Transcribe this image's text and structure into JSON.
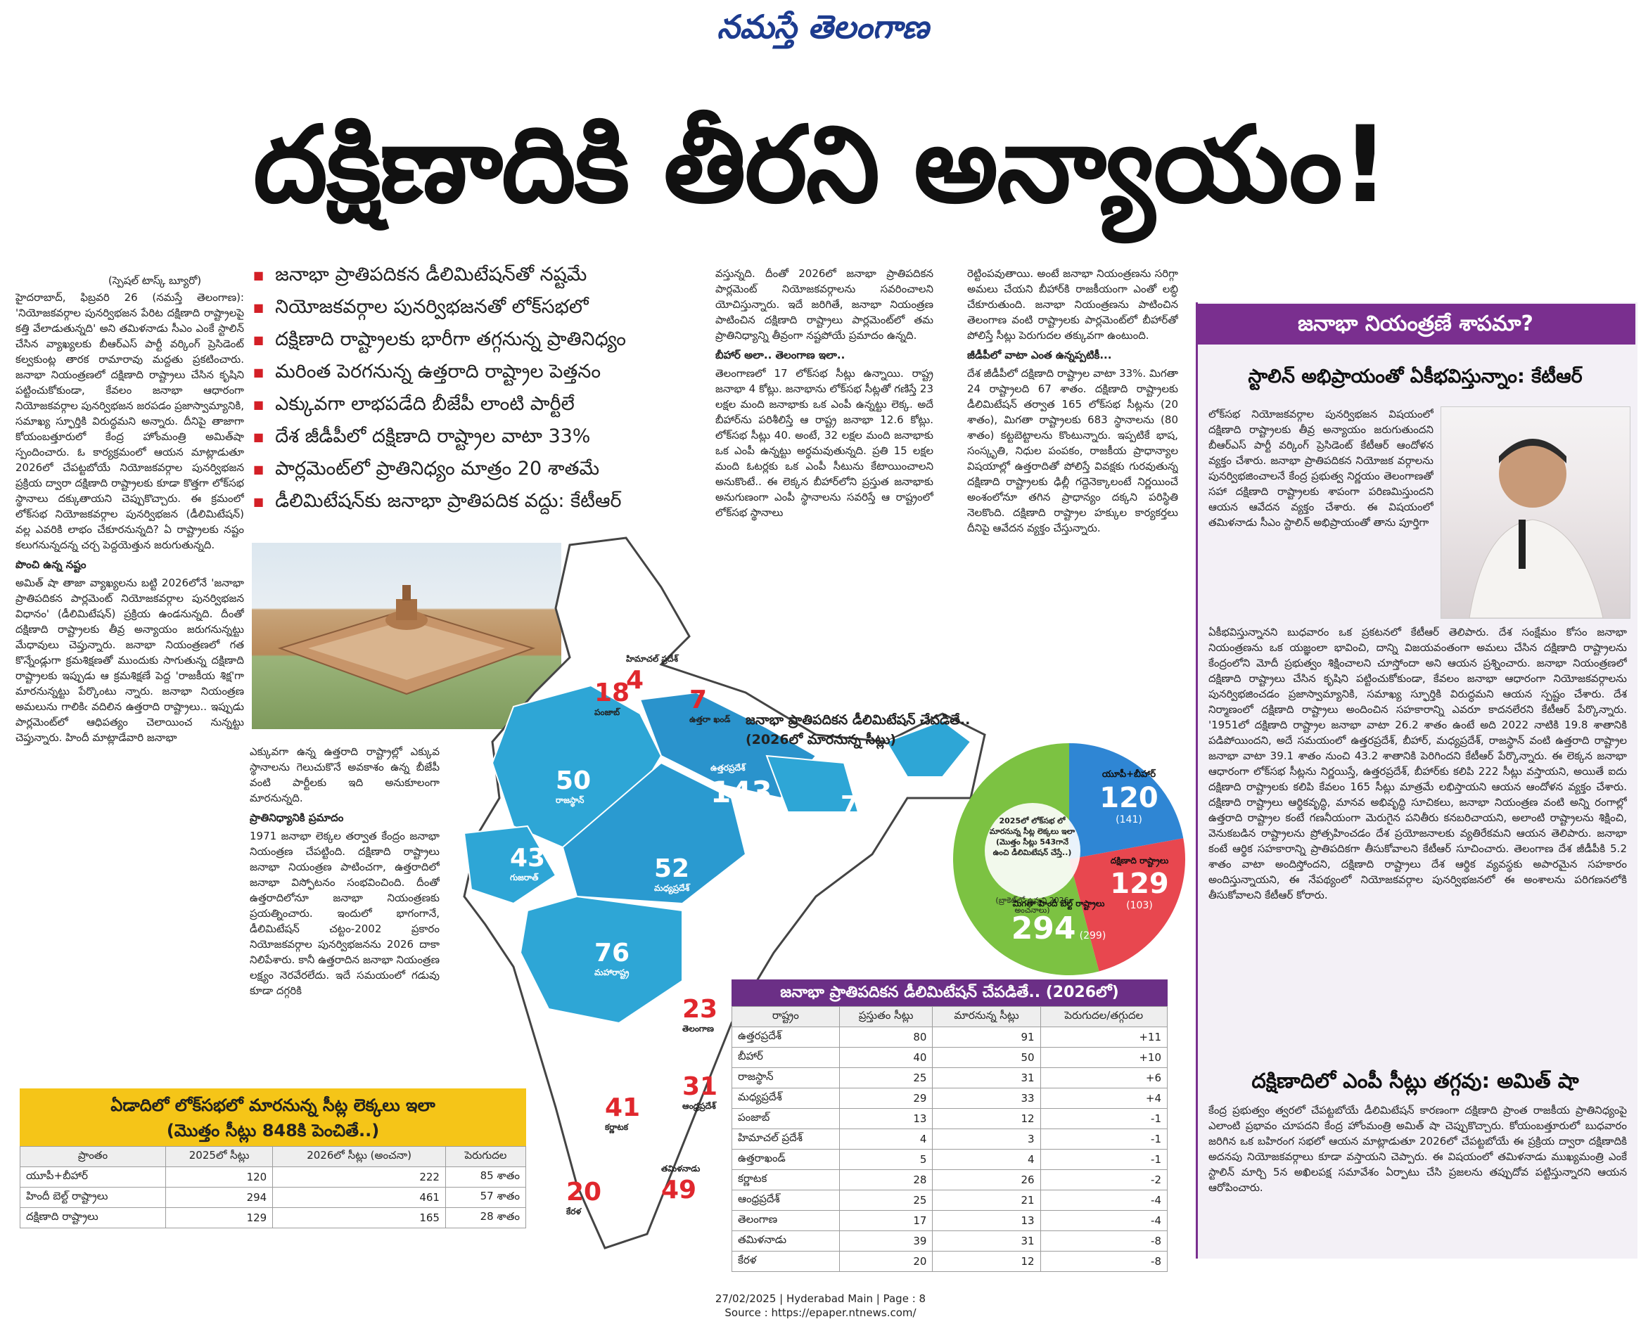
{
  "masthead": "నమస్తే తెలంగాణ",
  "headline": "దక్షిణాదికి తీరని అన్యాయం!",
  "bullets": [
    "జనాభా ప్రాతిపదికన డీలిమిటేషన్‌తో నష్టమే",
    "నియోజకవర్గాల పునర్విభజనతో లోక్‌సభలో",
    "దక్షిణాది రాష్ట్రాలకు భారీగా తగ్గనున్న ప్రాతినిధ్యం",
    "మరింత పెరగనున్న ఉత్తరాది రాష్ట్రాల పెత్తనం",
    "ఎక్కువగా లాభపడేది బీజేపీ లాంటి పార్టీలే",
    "దేశ జీడీపీలో దక్షిణాది రాష్ట్రాల వాటా 33%",
    "పార్లమెంట్‌లో ప్రాతినిధ్యం మాత్రం 20 శాతమే",
    "డీలిమిటేషన్‌కు జనాభా ప్రాతిపదిక వద్దు: కేటీఆర్"
  ],
  "byline": "(స్పెషల్ టాస్క్ బ్యూరో)",
  "col1": {
    "paras": [
      "హైదరాబాద్, ఫిబ్రవరి 26 (నమస్తే తెలంగాణ): 'నియోజకవర్గాల పునర్విభజన పేరిట దక్షిణాది రాష్ట్రాలపై కత్తి వేలాడుతున్నది' అని తమిళనాడు సీఎం ఎంకే స్టాలిన్ చేసిన వ్యాఖ్యలకు బీఆర్ఎస్ పార్టీ వర్కింగ్ ప్రెసిడెంట్ కల్వకుంట్ల తారక రామారావు మద్దతు ప్రకటించారు. జనాభా నియంత్రణలో దక్షిణాది రాష్ట్రాలు చేసిన కృషిని పట్టించుకోకుండా, కేవలం జనాభా ఆధారంగా నియోజకవర్గాల పునర్విభజన జరపడం ప్రజాస్వామ్యానికి, సమాఖ్య స్ఫూర్తికి విరుద్ధమని అన్నారు. దీనిపై తాజాగా కోయంబత్తూరులో కేంద్ర హోంమంత్రి అమిత్‌షా స్పందించారు. ఓ కార్యక్రమంలో ఆయన మాట్లాడుతూ 2026లో చేపట్టబోయే నియోజకవర్గాల పునర్విభజన ప్రక్రియ ద్వారా దక్షిణాది రాష్ట్రాలకు కూడా కొత్తగా లోక్‌సభ స్థానాలు దక్కుతాయని చెప్పుకొచ్చారు. ఈ క్రమంలో లోక్‌సభ నియోజకవర్గాల పునర్విభజన (డీలిమిటేషన్) వల్ల ఎవరికి లాభం చేకూరనున్నది? ఏ రాష్ట్రాలకు నష్టం కలుగనున్నదన్న చర్చ పెద్దయెత్తున జరుగుతున్నది."
    ],
    "sub1": "పొంచి ఉన్న నష్టం",
    "paras2": [
      "అమిత్ షా తాజా వ్యాఖ్యలను బట్టి 2026లోనే 'జనాభా ప్రాతిపదికన పార్లమెంట్ నియోజకవర్గాల పునర్విభజన విధానం' (డీలిమిటేషన్) ప్రక్రియ ఉండనున్నది. దీంతో దక్షిణాది రాష్ట్రాలకు తీవ్ర అన్యాయం జరుగనున్నట్టు మేధావులు చెప్తున్నారు. జనాభా నియంత్రణలో గత కొన్నేండ్లుగా క్రమశిక్షణతో ముందుకు సాగుతున్న దక్షిణాది రాష్ట్రాలకు ఇప్పుడు ఆ క్రమశిక్షణే పెద్ద 'రాజకీయ శిక్ష'గా మారనున్నట్టు పేర్కొంటు న్నారు. జనాభా నియంత్రణ అమలును గాలికిఁ వదిలిన ఉత్తరాది రాష్ట్రాలు.. ఇప్పుడు పార్లమెంట్‌లో ఆధిపత్యం చెలాయించ నున్నట్టు చెప్తున్నారు. హిందీ మాట్లాడేవారి జనాభా"
    ]
  },
  "col2": {
    "paras": [
      "ఎక్కువగా ఉన్న ఉత్తరాది రాష్ట్రాల్లో ఎక్కువ స్థానాలను గెలుచుకొనే అవకాశం ఉన్న బీజేపీ వంటి పార్టీలకు ఇది అనుకూలంగా మారనున్నది."
    ],
    "sub1": "ప్రాతినిధ్యానికి ప్రమాదం",
    "paras2": [
      "1971 జనాభా లెక్కల తర్వాత కేంద్రం జనాభా నియంత్రణ చేపట్టింది. దక్షిణాది రాష్ట్రాలు జనాభా నియంత్రణ పాటించగా, ఉత్తరాదిలో జనాభా విస్ఫోటనం సంభవించింది. దీంతో ఉత్తరాదిలోనూ జనాభా నియంత్రణకు ప్రయత్నించారు. ఇందులో భాగంగానే, డీలిమిటేషన్ చట్టం-2002 ప్రకారం నియోజకవర్గాల పునర్విభజనను 2026 దాకా నిలిపేశారు. కానీ ఉత్తరాదిన జనాభా నియంత్రణ లక్ష్యం నెరవేరలేదు. ఇదే సమయంలో గడువు కూడా దగ్గరికి"
    ]
  },
  "col3": {
    "paras": [
      "వస్తున్నది. దీంతో 2026లో జనాభా ప్రాతిపదికన పార్లమెంట్ నియోజకవర్గాలను సవరించాలని యోచిస్తున్నారు. ఇదే జరిగితే, జనాభా నియంత్రణ పాటించిన దక్షిణాది రాష్ట్రాలు పార్లమెంట్‌లో తమ ప్రాతినిధ్యాన్ని తీవ్రంగా నష్టపోయే ప్రమాదం ఉన్నది."
    ],
    "sub1": "బీహార్ అలా.. తెలంగాణ ఇలా..",
    "paras2": [
      "తెలంగాణలో 17 లోక్‌సభ సీట్లు ఉన్నాయి. రాష్ట్ర జనాభా 4 కోట్లు. జనాభాను లోక్‌సభ సీట్లతో గణిస్తే 23 లక్షల మంది జనాభాకు ఒక ఎంపీ ఉన్నట్టు లెక్క. అదే బీహార్‌ను పరిశీలిస్తే ఆ రాష్ట్ర జనాభా 12.6 కోట్లు. లోక్‌సభ సీట్లు 40. అంటే, 32 లక్షల మంది జనాభాకు ఒక ఎంపీ ఉన్నట్టు అర్థమవుతున్నది. ప్రతి 15 లక్షల మంది ఓటర్లకు ఒక ఎంపీ సీటును కేటాయించాలని అనుకొంటే.. ఈ లెక్కన బీహార్‌లోని ప్రస్తుత జనాభాకు అనుగుణంగా ఎంపీ స్థానాలను సవరిస్తే ఆ రాష్ట్రంలో లోక్‌సభ స్థానాలు"
    ]
  },
  "col4": {
    "paras": [
      "రెట్టింపవుతాయి. అంటే జనాభా నియంత్రణను సరిగ్గా అమలు చేయని బీహార్‌కి రాజకీయంగా ఎంతో లబ్ధి చేకూరుతుంది. జనాభా నియంత్రణను పాటించిన తెలంగాణ వంటి రాష్ట్రాలకు పార్లమెంట్‌లో బీహార్‌తో పోలిస్తే సీట్లు పెరుగుదల తక్కువగా ఉంటుంది."
    ],
    "sub1": "జీడీపీలో వాటా ఎంత ఉన్నప్పటికీ...",
    "paras2": [
      "దేశ జీడీపీలో దక్షిణాది రాష్ట్రాల వాటా 33%. మిగతా 24 రాష్ట్రాలది 67 శాతం. దక్షిణాది రాష్ట్రాలకు డీలిమిటేషన్ తర్వాత 165 లోక్‌సభ సీట్లను (20 శాతం), మిగతా రాష్ట్రాలకు 683 స్థానాలను (80 శాతం) కట్టబెట్టాలను కొంటున్నారు. ఇప్పటికే భాష, సంస్కృతి, నిధుల పంపకం, రాజకీయ ప్రాధాన్యాల విషయాల్లో ఉత్తరాదితో పోలిస్తే వివక్షకు గురవుతున్న దక్షిణాది రాష్ట్రాలకు ఢిల్లీ గద్దెనెక్కాలంటే నిర్ణయించే అంశంలోనూ తగిన ప్రాధాన్యం దక్కని పరిస్థితి నెలకొంది. దక్షిణాది రాష్ట్రాల హక్కుల కార్యకర్తలు దీనిపై ఆవేదన వ్యక్తం చేస్తున్నారు."
    ]
  },
  "sidebar": {
    "title": "జనాభా నియంత్రణే శాపమా?",
    "subtitle": "స్టాలిన్ అభిప్రాయంతో ఏకీభవిస్తున్నాం: కేటీఆర్",
    "intro": "లోక్‌సభ నియోజకవర్గాల పునర్విభజన విషయంలో దక్షిణాది రాష్ట్రాలకు తీవ్ర అన్యాయం జరుగుతుందని బీఆర్ఎస్ పార్టీ వర్కింగ్ ప్రెసిడెంట్ కేటీఆర్ ఆందోళన వ్యక్తం చేశారు. జనాభా ప్రాతిపదికన నియోజక వర్గాలను పునర్విభజించాలనే కేంద్ర ప్రభుత్వ నిర్ణయం తెలంగాణతో సహా దక్షిణాది రాష్ట్రాలకు శాపంగా పరిణమిస్తుందని ఆయన ఆవేదన వ్యక్తం చేశారు. ఈ విషయంలో తమిళనాడు సీఎం స్టాలిన్ అభిప్రాయంతో తాను పూర్తిగా",
    "body": "ఏకీభవిస్తున్నానని బుధవారం ఒక ప్రకటనలో కేటీఆర్ తెలిపారు. దేశ సంక్షేమం కోసం జనాభా నియంత్రణను ఒక యజ్ఞంలా భావించి, దాన్ని విజయవంతంగా అమలు చేసిన దక్షిణాది రాష్ట్రాలను కేంద్రంలోని మోదీ ప్రభుత్వం శిక్షించాలని చూస్తోందా అని ఆయన ప్రశ్నించారు. జనాభా నియంత్రణలో దక్షిణాది రాష్ట్రాలు చేసిన కృషిని పట్టించుకోకుండా, కేవలం జనాభా ఆధారంగా నియోజకవర్గాలను పునర్విభజించడం ప్రజాస్వామ్యానికి, సమాఖ్య స్ఫూర్తికి విరుద్ధమని ఆయన స్పష్టం చేశారు. దేశ నిర్మాణంలో దక్షిణాది రాష్ట్రాలు అందించిన సహకారాన్ని ఎవరూ కాదనలేరని కేటీఆర్ పేర్కొన్నారు. '1951లో దక్షిణాది రాష్ట్రాల జనాభా వాటా 26.2 శాతం ఉంటే అది 2022 నాటికి 19.8 శాతానికి పడిపోయిందని, అదే సమయంలో ఉత్తరప్రదేశ్, బీహార్, మధ్యప్రదేశ్, రాజస్థాన్ వంటి ఉత్తరాది రాష్ట్రాల జనాభా వాటా 39.1 శాతం నుంచి 43.2 శాతానికి పెరిగిందని కేటీఆర్ పేర్కొన్నారు. ఈ లెక్కన జనాభా ఆధారంగా లోక్‌సభ సీట్లను నిర్ణయిస్తే, ఉత్తరప్రదేశ్, బీహార్‌కు కలిపి 222 సీట్లు వస్తాయని, అయితే ఐదు దక్షిణాది రాష్ట్రాలకు కలిపి కేవలం 165 సీట్లు మాత్రమే లభిస్తాయని ఆయన ఆందోళన వ్యక్తం చేశారు. దక్షిణాది రాష్ట్రాలు ఆర్థికవృద్ధి, మానవ అభివృద్ధి సూచికలు, జనాభా నియంత్రణ వంటి అన్ని రంగాల్లో ఉత్తరాది రాష్ట్రాల కంటే గణనీయంగా మెరుగైన పనితీరు కనబరిచాయని, అలాంటి రాష్ట్రాలను శిక్షించి, వెనుకబడిన రాష్ట్రాలను ప్రోత్సహించడం దేశ ప్రయోజనాలకు వ్యతిరేకమని ఆయన తెలిపారు. జనాభా కంటే ఆర్థిక సహకారాన్ని ప్రాతిపదికగా తీసుకోవాలని కేటీఆర్ సూచించారు. తెలంగాణ దేశ జీడీపీకి 5.2 శాతం వాటా అందిస్తోందని, దక్షిణాది రాష్ట్రాలు దేశ ఆర్థిక వ్యవస్థకు అపారమైన సహకారం అందిస్తున్నాయని, ఈ నేపథ్యంలో నియోజకవర్గాల పునర్విభజనలో ఈ అంశాలను పరిగణనలోకి తీసుకోవాలని కేటీఆర్ కోరారు.",
    "subtitle2": "దక్షిణాదిలో ఎంపీ సీట్లు తగ్గవు: అమిత్ షా",
    "body2": "కేంద్ర ప్రభుత్వం త్వరలో చేపట్టబోయే డీలిమిటేషన్ కారణంగా దక్షిణాది ప్రాంత రాజకీయ ప్రాతినిధ్యంపై ఎలాంటి ప్రభావం చూపదని కేంద్ర హోంమంత్రి అమిత్ షా చెప్పుకొచ్చారు. కోయంబత్తూరులో బుధవారం జరిగిన ఒక బహిరంగ సభలో ఆయన మాట్లాడుతూ 2026లో చేపట్టబోయే ఈ ప్రక్రియ ద్వారా దక్షిణాదికి అదనపు నియోజకవర్గాలు కూడా వస్తాయని చెప్పారు. ఈ విషయంలో తమిళనాడు ముఖ్యమంత్రి ఎంకే స్టాలిన్ మార్చి 5న అఖిలపక్ష సమావేశం ఏర్పాటు చేసి ప్రజలను తప్పుదోవ పట్టిస్తున్నారని ఆయన ఆరోపించారు."
  },
  "map": {
    "caption": "జనాభా ప్రాతిపదికన డీలిమిటేషన్ చేపడితే.. (2026లో మారనున్న సీట్లు)",
    "states": [
      {
        "num": "18",
        "name": "పంజాబ్"
      },
      {
        "num": "4",
        "name": "హిమాచల్ ప్రదేశ్"
      },
      {
        "num": "7",
        "name": "ఉత్తరా ఖండ్"
      },
      {
        "num": "50",
        "name": "రాజస్థాన్"
      },
      {
        "num": "143",
        "name": "ఉత్తరప్రదేశ్"
      },
      {
        "num": "79",
        "name": "బీహార్"
      },
      {
        "num": "43",
        "name": "గుజరాత్"
      },
      {
        "num": "52",
        "name": "మధ్యప్రదేశ్"
      },
      {
        "num": "76",
        "name": "మహారాష్ట్ర"
      },
      {
        "num": "23",
        "name": "తెలంగాణ"
      },
      {
        "num": "31",
        "name": "ఆంధ్రప్రదేశ్"
      },
      {
        "num": "41",
        "name": "కర్ణాటక"
      },
      {
        "num": "20",
        "name": "కేరళ"
      },
      {
        "num": "49",
        "name": "తమిళనాడు"
      }
    ]
  },
  "pie": {
    "center_note": "2025లో లోక్‌సభ లో మారనున్న సీట్ల లెక్కలు ఇలా (మొత్తం సీట్లు 543గానే ఉంచి డీలిమిటేషన్ చేస్తే..)",
    "center_note2": "(బ్రాకెట్‌లో ఉన్నవి 2026 అంచనాలు)",
    "segments": [
      {
        "label": "యూపీ+బీహార్",
        "value": 120,
        "bracket": "(141)",
        "color": "#2f86d4"
      },
      {
        "label": "దక్షిణాది రాష్ట్రాలు",
        "value": 129,
        "bracket": "(103)",
        "color": "#e8474f"
      },
      {
        "label": "మిగతా హిందీ బెల్ట్ రాష్ట్రాలు",
        "value": 294,
        "bracket": "(299)",
        "color": "#7cc242"
      }
    ]
  },
  "ytable": {
    "title1": "ఏడాదిలో లోక్‌సభలో మారనున్న సీట్ల లెక్కలు ఇలా",
    "title2": "(మొత్తం సీట్లు 848కి పెంచితే..)",
    "headers": [
      "ప్రాంతం",
      "2025లో సీట్లు",
      "2026లో సీట్లు (అంచనా)",
      "పెరుగుదల"
    ],
    "rows": [
      [
        "యూపీ+బీహార్",
        "120",
        "222",
        "85 శాతం"
      ],
      [
        "హిందీ బెల్ట్ రాష్ట్రాలు",
        "294",
        "461",
        "57 శాతం"
      ],
      [
        "దక్షిణాది రాష్ట్రాలు",
        "129",
        "165",
        "28 శాతం"
      ]
    ]
  },
  "ptable": {
    "title": "జనాభా ప్రాతిపదికన డీలిమిటేషన్ చేపడితే.. (2026లో)",
    "headers": [
      "రాష్ట్రం",
      "ప్రస్తుతం సీట్లు",
      "మారనున్న సీట్లు",
      "పెరుగుదల/తగ్గుదల"
    ],
    "rows": [
      [
        "ఉత్తరప్రదేశ్",
        "80",
        "91",
        "+11"
      ],
      [
        "బీహార్",
        "40",
        "50",
        "+10"
      ],
      [
        "రాజస్థాన్",
        "25",
        "31",
        "+6"
      ],
      [
        "మధ్యప్రదేశ్",
        "29",
        "33",
        "+4"
      ],
      [
        "పంజాబ్",
        "13",
        "12",
        "-1"
      ],
      [
        "హిమాచల్ ప్రదేశ్",
        "4",
        "3",
        "-1"
      ],
      [
        "ఉత్తరాఖండ్",
        "5",
        "4",
        "-1"
      ],
      [
        "కర్ణాటక",
        "28",
        "26",
        "-2"
      ],
      [
        "ఆంధ్రప్రదేశ్",
        "25",
        "21",
        "-4"
      ],
      [
        "తెలంగాణ",
        "17",
        "13",
        "-4"
      ],
      [
        "తమిళనాడు",
        "39",
        "31",
        "-8"
      ],
      [
        "కేరళ",
        "20",
        "12",
        "-8"
      ]
    ]
  },
  "footer": {
    "line1": "27/02/2025 | Hyderabad Main | Page : 8",
    "line2": "Source : https://epaper.ntnews.com/"
  }
}
